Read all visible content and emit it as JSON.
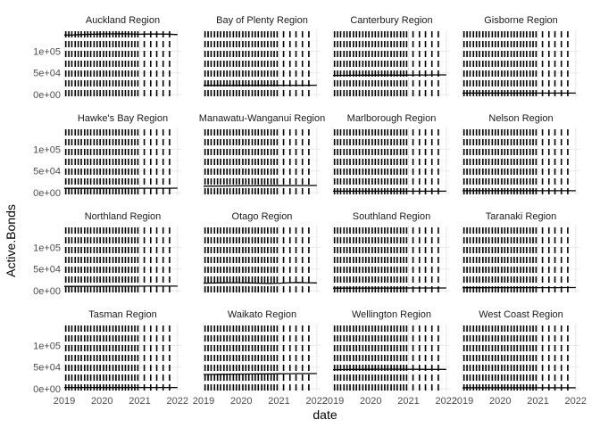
{
  "chart_data": {
    "type": "line",
    "facet_layout": {
      "rows": 4,
      "cols": 4
    },
    "xlabel": "date",
    "ylabel": "Active.Bonds",
    "xlim": [
      2019.0,
      2022.1
    ],
    "ylim": [
      -6000,
      150000
    ],
    "x_ticks": [
      2019,
      2020,
      2021,
      2022
    ],
    "x_tick_labels": [
      "2019",
      "2020",
      "2021",
      "2022"
    ],
    "y_ticks": [
      0,
      50000,
      100000
    ],
    "y_tick_labels": [
      "0e+00",
      "5e+04",
      "1e+05"
    ],
    "grid": true,
    "dashed_marker_dates": [
      2019.04,
      2019.12,
      2019.2,
      2019.29,
      2019.37,
      2019.45,
      2019.54,
      2019.62,
      2019.7,
      2019.79,
      2019.87,
      2019.95,
      2020.04,
      2020.12,
      2020.2,
      2020.29,
      2020.37,
      2020.45,
      2020.54,
      2020.62,
      2020.7,
      2020.79,
      2020.87,
      2020.95,
      2021.12,
      2021.29,
      2021.45,
      2021.62,
      2021.79
    ],
    "series_x": [
      2019.0,
      2019.25,
      2019.5,
      2019.75,
      2020.0,
      2020.25,
      2020.5,
      2020.75,
      2021.0,
      2021.25,
      2021.5,
      2021.75,
      2022.0
    ],
    "panels": [
      {
        "name": "Auckland Region",
        "values": [
          137000,
          137500,
          138500,
          139000,
          139500,
          139800,
          140000,
          139500,
          139000,
          139300,
          139500,
          139200,
          138000
        ]
      },
      {
        "name": "Bay of Plenty Region",
        "values": [
          21000,
          21000,
          21100,
          21100,
          21200,
          21200,
          21300,
          21300,
          21300,
          21400,
          21400,
          21400,
          21500
        ]
      },
      {
        "name": "Canterbury Region",
        "values": [
          44000,
          44200,
          44500,
          44600,
          44800,
          45000,
          45000,
          44800,
          44900,
          45100,
          45200,
          45300,
          45400
        ]
      },
      {
        "name": "Gisborne Region",
        "values": [
          3500,
          3500,
          3500,
          3500,
          3500,
          3500,
          3500,
          3500,
          3500,
          3500,
          3500,
          3500,
          3500
        ]
      },
      {
        "name": "Hawke's Bay Region",
        "values": [
          10000,
          10000,
          10100,
          10100,
          10100,
          10200,
          10200,
          10200,
          10300,
          10300,
          10300,
          10300,
          10400
        ]
      },
      {
        "name": "Manawatu-Wanganui Region",
        "values": [
          15000,
          15200,
          15400,
          15500,
          15700,
          15800,
          15900,
          16000,
          16100,
          16200,
          16300,
          16400,
          16500
        ]
      },
      {
        "name": "Marlborough Region",
        "values": [
          3500,
          3500,
          3500,
          3500,
          3500,
          3500,
          3500,
          3500,
          3500,
          3500,
          3500,
          3500,
          3500
        ]
      },
      {
        "name": "Nelson Region",
        "values": [
          4500,
          4500,
          4500,
          4500,
          4500,
          4500,
          4500,
          4500,
          4500,
          4500,
          4500,
          4500,
          4500
        ]
      },
      {
        "name": "Northland Region",
        "values": [
          10000,
          10100,
          10200,
          10200,
          10300,
          10400,
          10400,
          10500,
          10500,
          10600,
          10600,
          10700,
          10700
        ]
      },
      {
        "name": "Otago Region",
        "values": [
          17500,
          17800,
          18200,
          18500,
          18500,
          18000,
          17500,
          17000,
          17500,
          18500,
          19000,
          18500,
          18000
        ]
      },
      {
        "name": "Southland Region",
        "values": [
          6000,
          6000,
          6100,
          6100,
          6100,
          6200,
          6200,
          6200,
          6300,
          6300,
          6300,
          6300,
          6400
        ]
      },
      {
        "name": "Taranaki Region",
        "values": [
          7000,
          7000,
          7000,
          7100,
          7100,
          7100,
          7100,
          7200,
          7200,
          7200,
          7200,
          7300,
          7300
        ]
      },
      {
        "name": "Tasman Region",
        "values": [
          3000,
          3000,
          3000,
          3000,
          3000,
          3000,
          3000,
          3000,
          3000,
          3000,
          3000,
          3000,
          3000
        ]
      },
      {
        "name": "Waikato Region",
        "values": [
          33000,
          33300,
          33600,
          33800,
          34000,
          34200,
          34400,
          34500,
          34700,
          34900,
          35000,
          35100,
          35200
        ]
      },
      {
        "name": "Wellington Region",
        "values": [
          44000,
          44300,
          44600,
          44800,
          45000,
          45100,
          45200,
          45100,
          45000,
          44900,
          44800,
          44700,
          44600
        ]
      },
      {
        "name": "West Coast Region",
        "values": [
          2500,
          2500,
          2500,
          2500,
          2500,
          2500,
          2500,
          2500,
          2500,
          2500,
          2500,
          2500,
          2500
        ]
      }
    ]
  }
}
